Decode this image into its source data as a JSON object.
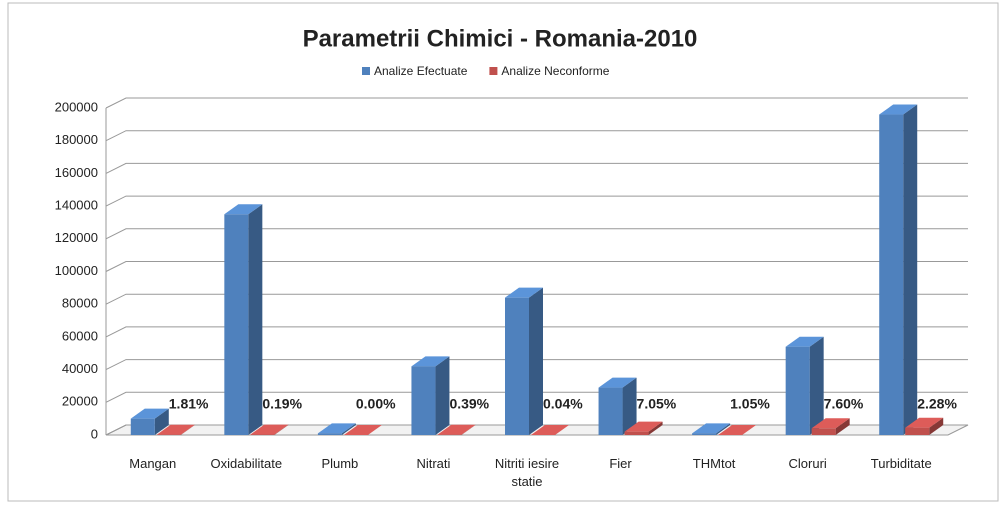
{
  "chart_data": {
    "type": "bar3d",
    "title": "Parametrii Chimici - Romania-2010",
    "categories": [
      "Mangan",
      "Oxidabilitate",
      "Plumb",
      "Nitrati",
      "Nitriti iesire statie",
      "Fier",
      "THMtot",
      "Cloruri",
      "Turbiditate"
    ],
    "series": [
      {
        "name": "Analize Efectuate",
        "color": "#4f81bd",
        "values": [
          10000,
          135000,
          1000,
          42000,
          84000,
          29000,
          1000,
          54000,
          196000
        ]
      },
      {
        "name": "Analize Neconforme",
        "color": "#c0504d",
        "values": [
          181,
          257,
          0,
          164,
          34,
          2045,
          11,
          4104,
          4469
        ]
      }
    ],
    "annotations": [
      "1.81%",
      "0.19%",
      "0.00%",
      "0.39%",
      "0.04%",
      "7.05%",
      "1.05%",
      "7.60%",
      "2.28%"
    ],
    "ylim": [
      0,
      200000
    ],
    "yticks": [
      0,
      20000,
      40000,
      60000,
      80000,
      100000,
      120000,
      140000,
      160000,
      180000,
      200000
    ],
    "grid": true,
    "legend": "top"
  }
}
